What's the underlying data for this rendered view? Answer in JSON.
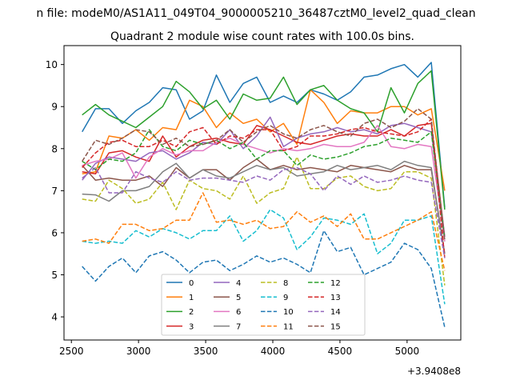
{
  "chart_data": {
    "type": "line",
    "suptitle": "n file: modeM0/AS1A11_049T04_9000005210_36487cztM0_level2_quad_clean",
    "title": "Quadrant 2 module wise count rates with 100.0s bins.",
    "xlabel": "",
    "ylabel": "",
    "offset_label": "+3.9408e8",
    "xlim": [
      2445,
      5400
    ],
    "ylim": [
      3.45,
      10.45
    ],
    "xticks": [
      2500,
      3000,
      3500,
      4000,
      4500,
      5000
    ],
    "yticks": [
      4,
      5,
      6,
      7,
      8,
      9,
      10
    ],
    "grid": false,
    "legend": {
      "placement": "lower-center",
      "columns": 4
    },
    "x": [
      2580,
      2680,
      2780,
      2880,
      2980,
      3080,
      3180,
      3280,
      3380,
      3480,
      3580,
      3680,
      3780,
      3880,
      3980,
      4080,
      4180,
      4280,
      4380,
      4480,
      4580,
      4680,
      4780,
      4880,
      4980,
      5080,
      5180,
      5280
    ],
    "series": [
      {
        "name": "0",
        "color": "#1f77b4",
        "dash": "solid",
        "values": [
          8.4,
          8.95,
          8.95,
          8.6,
          8.9,
          9.1,
          9.45,
          9.4,
          8.7,
          8.9,
          9.75,
          9.1,
          9.55,
          9.7,
          9.1,
          9.25,
          9.1,
          9.4,
          9.3,
          9.15,
          9.35,
          9.7,
          9.75,
          9.9,
          10.0,
          9.7,
          10.05,
          6.6
        ]
      },
      {
        "name": "1",
        "color": "#ff7f0e",
        "dash": "solid",
        "values": [
          7.4,
          7.45,
          8.3,
          8.25,
          8.45,
          8.2,
          8.5,
          8.45,
          9.15,
          9.0,
          8.5,
          8.85,
          8.6,
          8.7,
          8.4,
          8.6,
          8.1,
          9.4,
          9.1,
          8.6,
          8.9,
          8.85,
          8.85,
          9.0,
          9.0,
          8.8,
          8.95,
          7.0
        ]
      },
      {
        "name": "2",
        "color": "#2ca02c",
        "dash": "solid",
        "values": [
          8.8,
          9.05,
          8.8,
          8.65,
          8.5,
          8.75,
          9.0,
          9.6,
          9.35,
          8.95,
          9.15,
          8.7,
          9.3,
          9.15,
          9.2,
          9.7,
          9.05,
          9.4,
          9.5,
          9.15,
          8.95,
          8.85,
          8.4,
          9.45,
          8.85,
          9.55,
          9.85,
          6.55
        ]
      },
      {
        "name": "3",
        "color": "#d62728",
        "dash": "solid",
        "values": [
          7.45,
          7.4,
          7.9,
          7.95,
          7.8,
          7.7,
          8.3,
          7.8,
          8.05,
          8.2,
          8.25,
          8.15,
          8.1,
          8.55,
          8.45,
          8.3,
          8.15,
          8.1,
          8.2,
          8.3,
          8.35,
          8.3,
          8.3,
          8.45,
          8.3,
          8.55,
          8.6,
          5.9
        ]
      },
      {
        "name": "4",
        "color": "#9467bd",
        "dash": "solid",
        "values": [
          7.25,
          7.65,
          7.8,
          7.75,
          7.7,
          7.9,
          7.95,
          7.75,
          7.9,
          8.15,
          8.1,
          8.45,
          8.0,
          8.3,
          8.75,
          8.05,
          8.25,
          8.35,
          8.4,
          8.5,
          8.4,
          8.45,
          8.35,
          8.55,
          8.6,
          8.5,
          8.4,
          5.9
        ]
      },
      {
        "name": "5",
        "color": "#8c564b",
        "dash": "solid",
        "values": [
          7.6,
          7.25,
          7.3,
          7.25,
          7.25,
          7.35,
          7.1,
          7.55,
          7.3,
          7.5,
          7.5,
          7.25,
          7.55,
          7.75,
          7.5,
          7.6,
          7.5,
          7.55,
          7.5,
          7.45,
          7.6,
          7.55,
          7.5,
          7.45,
          7.6,
          7.5,
          7.5,
          5.5
        ]
      },
      {
        "name": "6",
        "color": "#e377c2",
        "dash": "solid",
        "values": [
          7.6,
          7.7,
          7.75,
          7.9,
          7.3,
          7.8,
          8.0,
          7.85,
          7.95,
          7.95,
          8.15,
          8.25,
          8.1,
          8.0,
          7.9,
          8.0,
          7.95,
          8.0,
          8.1,
          8.05,
          8.05,
          8.15,
          8.55,
          8.05,
          8.0,
          8.1,
          8.05,
          5.8
        ]
      },
      {
        "name": "7",
        "color": "#7f7f7f",
        "dash": "solid",
        "values": [
          6.92,
          6.9,
          6.75,
          7.0,
          7.0,
          7.1,
          7.45,
          7.65,
          7.3,
          7.5,
          7.35,
          7.3,
          7.45,
          7.6,
          7.5,
          7.55,
          7.35,
          7.4,
          7.45,
          7.6,
          7.5,
          7.55,
          7.6,
          7.5,
          7.7,
          7.6,
          7.55,
          5.5
        ]
      },
      {
        "name": "8",
        "color": "#bcbd22",
        "dash": "dashed",
        "values": [
          6.8,
          6.75,
          7.25,
          7.05,
          6.7,
          6.8,
          7.2,
          6.55,
          7.25,
          7.05,
          7.0,
          6.8,
          7.35,
          6.7,
          6.95,
          7.05,
          7.8,
          7.05,
          7.05,
          7.3,
          7.35,
          7.1,
          7.0,
          7.05,
          7.45,
          7.45,
          7.3,
          4.75
        ]
      },
      {
        "name": "9",
        "color": "#17becf",
        "dash": "dashed",
        "values": [
          5.8,
          5.75,
          5.8,
          5.75,
          6.05,
          5.9,
          6.1,
          6.0,
          5.85,
          6.05,
          6.05,
          6.4,
          5.8,
          6.05,
          6.55,
          6.35,
          5.6,
          5.9,
          6.35,
          6.3,
          6.2,
          6.45,
          5.5,
          5.75,
          6.3,
          6.3,
          6.4,
          4.3
        ]
      },
      {
        "name": "10",
        "color": "#1f77b4",
        "dash": "dashed",
        "values": [
          5.2,
          4.85,
          5.2,
          5.4,
          5.05,
          5.45,
          5.55,
          5.35,
          5.05,
          5.3,
          5.35,
          5.1,
          5.25,
          5.45,
          5.3,
          5.4,
          5.25,
          5.05,
          6.05,
          5.55,
          5.65,
          5.0,
          5.15,
          5.3,
          5.75,
          5.6,
          5.15,
          3.75
        ]
      },
      {
        "name": "11",
        "color": "#ff7f0e",
        "dash": "dashed",
        "values": [
          5.8,
          5.85,
          5.75,
          6.2,
          6.2,
          6.05,
          6.1,
          6.3,
          6.3,
          6.95,
          6.25,
          6.3,
          6.2,
          6.3,
          6.1,
          6.15,
          6.5,
          6.25,
          6.4,
          6.15,
          6.45,
          5.85,
          5.85,
          6.0,
          6.15,
          6.3,
          6.5,
          5.1
        ]
      },
      {
        "name": "12",
        "color": "#2ca02c",
        "dash": "dashed",
        "values": [
          7.7,
          7.5,
          7.75,
          7.7,
          7.9,
          8.45,
          8.05,
          7.95,
          8.2,
          8.1,
          8.2,
          8.0,
          8.15,
          7.75,
          7.95,
          7.95,
          7.6,
          7.85,
          7.75,
          7.8,
          7.9,
          8.05,
          8.1,
          8.25,
          8.2,
          8.15,
          8.4,
          5.85
        ]
      },
      {
        "name": "13",
        "color": "#d62728",
        "dash": "dashed",
        "values": [
          7.55,
          7.9,
          8.15,
          8.2,
          8.05,
          8.05,
          8.2,
          8.05,
          8.4,
          8.5,
          8.1,
          8.3,
          8.25,
          8.45,
          8.45,
          7.95,
          8.05,
          8.3,
          8.3,
          8.35,
          8.45,
          8.5,
          8.4,
          8.35,
          8.3,
          8.4,
          8.7,
          5.4
        ]
      },
      {
        "name": "14",
        "color": "#9467bd",
        "dash": "dashed",
        "values": [
          7.3,
          7.55,
          6.95,
          6.95,
          7.45,
          7.3,
          7.2,
          7.45,
          7.25,
          7.3,
          7.3,
          7.25,
          7.2,
          7.35,
          7.25,
          7.5,
          7.55,
          7.4,
          7.0,
          7.35,
          7.15,
          7.35,
          7.2,
          7.25,
          7.35,
          7.25,
          7.2,
          5.4
        ]
      },
      {
        "name": "15",
        "color": "#8c564b",
        "dash": "dashed",
        "values": [
          7.7,
          8.2,
          8.1,
          8.25,
          8.45,
          8.4,
          8.1,
          8.25,
          8.05,
          8.1,
          8.2,
          8.45,
          8.15,
          8.4,
          8.55,
          8.35,
          8.25,
          8.45,
          8.55,
          8.4,
          8.3,
          8.6,
          8.7,
          8.5,
          8.65,
          8.95,
          8.7,
          5.8
        ]
      }
    ]
  }
}
